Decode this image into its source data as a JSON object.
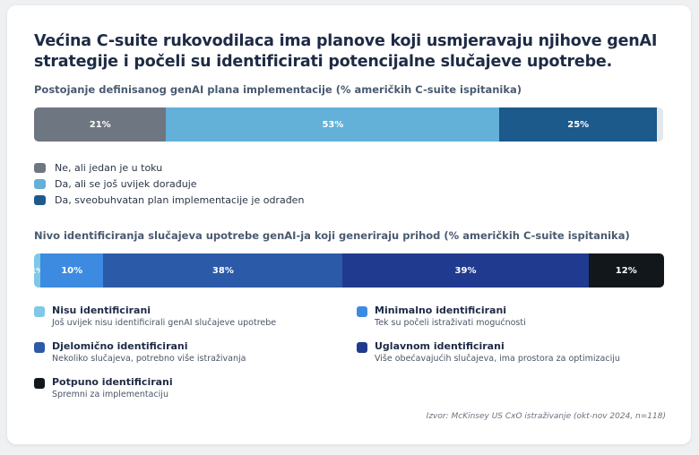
{
  "title": "Većina C-suite rukovodilaca ima planove koji usmjeravaju njihove genAI strategije i počeli su identificirati potencijalne slučajeve upotrebe.",
  "source": "Izvor: McKinsey US CxO istraživanje (okt-nov 2024, n=118)",
  "chart_data": [
    {
      "type": "bar",
      "orientation": "horizontal-stacked",
      "title": "Postojanje definisanog genAI plana implementacije (% američkih C-suite ispitanika)",
      "series": [
        {
          "name": "Ne, ali jedan je u toku",
          "value": 21,
          "label": "21%",
          "color": "#6e7681"
        },
        {
          "name": "Da, ali se još uvijek dorađuje",
          "value": 53,
          "label": "53%",
          "color": "#63b0d8"
        },
        {
          "name": "Da, sveobuhvatan plan implementacije je odrađen",
          "value": 25,
          "label": "25%",
          "color": "#1c5a8c"
        }
      ],
      "remainder": {
        "value": 1,
        "color": "#e4e7eb"
      },
      "legend": "bottom"
    },
    {
      "type": "bar",
      "orientation": "horizontal-stacked",
      "title": "Nivo identificiranja slučajeva upotrebe genAI-ja koji generiraju prihod (% američkih C-suite ispitanika)",
      "series": [
        {
          "name": "Nisu identificirani",
          "description": "Još uvijek nisu identificirali genAI slučajeve upotrebe",
          "value": 1,
          "label": "1%",
          "color": "#7ec8e8"
        },
        {
          "name": "Minimalno identificirani",
          "description": "Tek su počeli istraživati mogućnosti",
          "value": 10,
          "label": "10%",
          "color": "#3d8be0"
        },
        {
          "name": "Djelomično identificirani",
          "description": "Nekoliko slučajeva, potrebno više istraživanja",
          "value": 38,
          "label": "38%",
          "color": "#2b5aa8"
        },
        {
          "name": "Uglavnom identificirani",
          "description": "Više obećavajućih slučajeva, ima prostora za optimizaciju",
          "value": 39,
          "label": "39%",
          "color": "#1f3a8f"
        },
        {
          "name": "Potpuno identificirani",
          "description": "Spremni za implementaciju",
          "value": 12,
          "label": "12%",
          "color": "#12171c"
        }
      ],
      "legend_order": [
        0,
        1,
        2,
        3,
        4
      ],
      "legend": "bottom"
    }
  ]
}
